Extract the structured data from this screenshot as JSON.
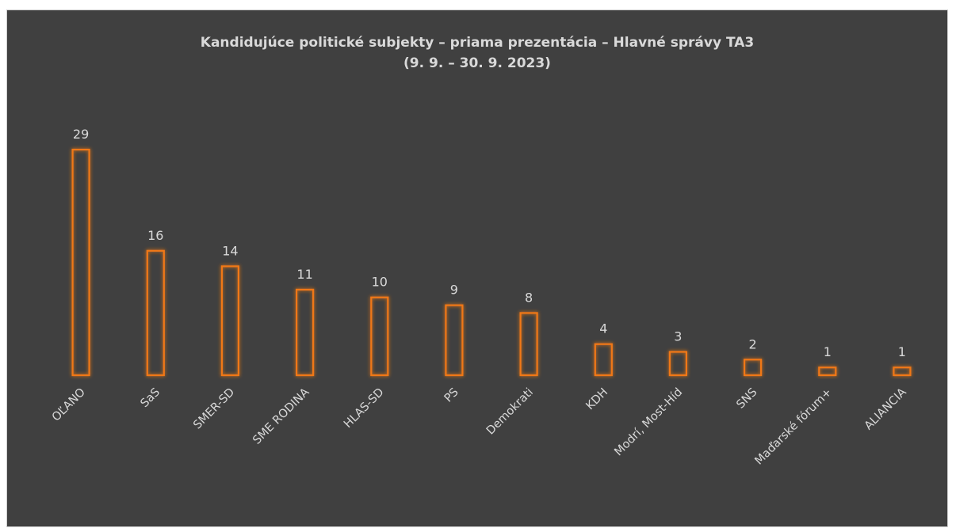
{
  "chart_data": {
    "type": "bar",
    "title": "Kandidujúce politické subjekty – priama prezentácia – Hlavné správy TA3",
    "subtitle": "(9. 9. – 30. 9. 2023)",
    "categories": [
      "OĽANO",
      "SaS",
      "SMER-SD",
      "SME RODINA",
      "HLAS-SD",
      "PS",
      "Demokrati",
      "KDH",
      "Modrí, Most-Híd",
      "SNS",
      "Maďarské fórum+",
      "ALIANCIA"
    ],
    "values": [
      29,
      16,
      14,
      11,
      10,
      9,
      8,
      4,
      3,
      2,
      1,
      1
    ],
    "ylim": [
      0,
      29
    ],
    "grid": false,
    "legend": "none",
    "bar_stroke_color": "#f07818",
    "bar_glow_color": "#c85a10",
    "label_color": "#d9d9d9",
    "background_color": "#404040"
  }
}
